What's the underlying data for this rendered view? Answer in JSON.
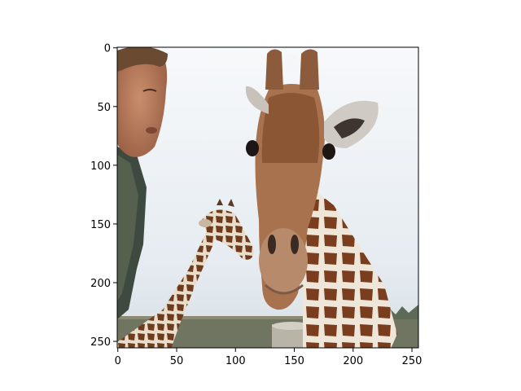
{
  "chart_data": {
    "type": "image",
    "title": "",
    "xlabel": "",
    "ylabel": "",
    "image_size": [
      256,
      256
    ],
    "xlim": [
      0,
      255
    ],
    "ylim": [
      255,
      0
    ],
    "xticks": [
      0,
      50,
      100,
      150,
      200,
      250
    ],
    "yticks": [
      0,
      50,
      100,
      150,
      200,
      250
    ],
    "grid": false,
    "image_content": "man next to two giraffes in a field"
  }
}
